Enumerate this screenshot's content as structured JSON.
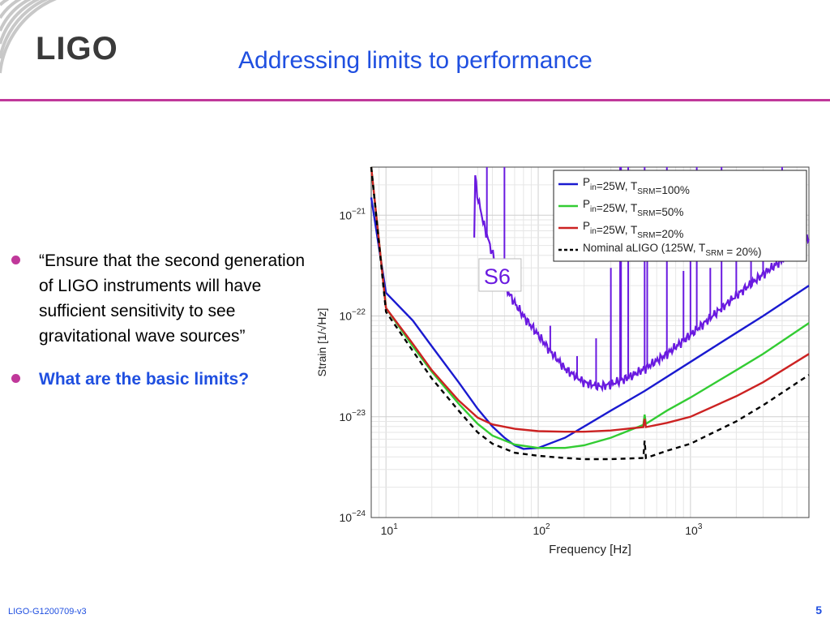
{
  "header": {
    "logo_text": "LIGO",
    "title": "Addressing limits to performance"
  },
  "bullets": [
    {
      "text": "“Ensure that the second generation of LIGO instruments will have sufficient sensitivity to see gravitational wave sources”",
      "style": "normal"
    },
    {
      "text": "What are the basic limits?",
      "style": "blue-bold"
    }
  ],
  "footer": {
    "doc_id": "LIGO-G1200709-v3",
    "page_number": "5"
  },
  "colors": {
    "title": "#1f4fe0",
    "rule": "#c0389a",
    "s6": "#6a1ae0",
    "blue": "#1a1ad0",
    "green": "#33cc33",
    "red": "#cc2222",
    "nominal": "#000000"
  },
  "chart_data": {
    "type": "line",
    "xscale": "log",
    "yscale": "log",
    "xlim": [
      8,
      6000
    ],
    "ylim": [
      1e-24,
      3e-21
    ],
    "xlabel": "Frequency [Hz]",
    "ylabel": "Strain [1/√Hz]",
    "xticks": [
      {
        "value": 10,
        "base": "10",
        "exp": "1"
      },
      {
        "value": 100,
        "base": "10",
        "exp": "2"
      },
      {
        "value": 1000,
        "base": "10",
        "exp": "3"
      }
    ],
    "yticks": [
      {
        "value": 1e-21,
        "base": "10",
        "exp": "−21"
      },
      {
        "value": 1e-22,
        "base": "10",
        "exp": "−22"
      },
      {
        "value": 1e-23,
        "base": "10",
        "exp": "−23"
      },
      {
        "value": 1e-24,
        "base": "10",
        "exp": "−24"
      }
    ],
    "grid": true,
    "legend_position": "top-right",
    "annotation": {
      "text": "S6",
      "x": 45,
      "y": 2.2e-22
    },
    "series": [
      {
        "legend": {
          "p": "P",
          "p_sub": "in",
          "mid": "=25W, T",
          "t_sub": "SRM",
          "end": "=100%"
        },
        "color": "#1a1ad0",
        "dash": "",
        "x": [
          8,
          10,
          15,
          20,
          30,
          40,
          50,
          60,
          70,
          80,
          100,
          150,
          200,
          300,
          500,
          1000,
          2000,
          3000,
          6000
        ],
        "y": [
          1.5e-21,
          1.7e-22,
          9e-23,
          5e-23,
          2.2e-23,
          1.2e-23,
          8e-24,
          6.2e-24,
          5.2e-24,
          4.8e-24,
          4.9e-24,
          6.2e-24,
          8e-24,
          1.15e-23,
          1.8e-23,
          3.5e-23,
          6.8e-23,
          1e-22,
          2e-22
        ]
      },
      {
        "legend": {
          "p": "P",
          "p_sub": "in",
          "mid": "=25W, T",
          "t_sub": "SRM",
          "end": "=50%"
        },
        "color": "#33cc33",
        "dash": "",
        "x": [
          8,
          10,
          15,
          20,
          30,
          40,
          50,
          70,
          100,
          150,
          200,
          300,
          490,
          500,
          510,
          700,
          1000,
          2000,
          3000,
          6000
        ],
        "y": [
          3e-21,
          1.2e-22,
          5e-23,
          2.8e-23,
          1.35e-23,
          8.5e-24,
          6.5e-24,
          5.3e-24,
          4.9e-24,
          4.9e-24,
          5.2e-24,
          6.2e-24,
          8.3e-24,
          1.05e-23,
          8.5e-24,
          1.15e-23,
          1.55e-23,
          2.9e-23,
          4.2e-23,
          8.5e-23
        ]
      },
      {
        "legend": {
          "p": "P",
          "p_sub": "in",
          "mid": "=25W, T",
          "t_sub": "SRM",
          "end": "=20%"
        },
        "color": "#cc2222",
        "dash": "",
        "x": [
          8,
          10,
          15,
          20,
          30,
          40,
          50,
          70,
          100,
          150,
          200,
          300,
          490,
          500,
          510,
          700,
          1000,
          2000,
          3000,
          6000
        ],
        "y": [
          3e-21,
          1.2e-22,
          5.3e-23,
          2.9e-23,
          1.45e-23,
          9.8e-24,
          8.4e-24,
          7.6e-24,
          7.2e-24,
          7.1e-24,
          7.1e-24,
          7.3e-24,
          7.9e-24,
          9.5e-24,
          7.9e-24,
          8.7e-24,
          1e-23,
          1.6e-23,
          2.2e-23,
          4.2e-23
        ]
      },
      {
        "legend": {
          "p": "",
          "p_sub": "",
          "mid": "Nominal aLIGO (125W, T",
          "t_sub": "SRM",
          "end": " = 20%)"
        },
        "color": "#000000",
        "dash": "6,5",
        "x": [
          8,
          10,
          15,
          20,
          30,
          40,
          50,
          70,
          100,
          150,
          200,
          300,
          490,
          500,
          510,
          700,
          1000,
          2000,
          3000,
          6000
        ],
        "y": [
          3e-21,
          1.1e-22,
          4.5e-23,
          2.4e-23,
          1.15e-23,
          7e-24,
          5.4e-24,
          4.4e-24,
          4.1e-24,
          3.9e-24,
          3.8e-24,
          3.8e-24,
          3.9e-24,
          5.8e-24,
          3.9e-24,
          4.6e-24,
          5.4e-24,
          9e-24,
          1.3e-23,
          2.6e-23
        ]
      }
    ],
    "s6_curve": {
      "color": "#6a1ae0",
      "x": [
        38,
        40,
        45,
        50,
        60,
        70,
        80,
        100,
        120,
        150,
        200,
        250,
        300,
        400,
        500,
        700,
        1000,
        1500,
        2000,
        3000,
        4000,
        5000,
        6000
      ],
      "y": [
        3e-21,
        1.5e-21,
        7e-22,
        4.2e-22,
        2e-22,
        1.35e-22,
        1e-22,
        6.5e-23,
        4.5e-23,
        3e-23,
        2.2e-23,
        2e-23,
        2.1e-23,
        2.5e-23,
        3e-23,
        4.2e-23,
        6.5e-23,
        1.1e-22,
        1.6e-22,
        2.6e-22,
        3.6e-22,
        4.8e-22,
        6e-22
      ],
      "spikes": [
        [
          46,
          3e-21
        ],
        [
          60,
          3e-21
        ],
        [
          120,
          8e-23
        ],
        [
          180,
          4e-23
        ],
        [
          240,
          6e-23
        ],
        [
          300,
          3e-22
        ],
        [
          345,
          3e-21
        ],
        [
          350,
          3e-21
        ],
        [
          390,
          3e-21
        ],
        [
          500,
          3e-21
        ],
        [
          520,
          6e-22
        ],
        [
          700,
          3e-21
        ],
        [
          900,
          2.8e-22
        ],
        [
          1000,
          5e-22
        ],
        [
          1100,
          3e-21
        ],
        [
          1350,
          3e-22
        ],
        [
          1600,
          3e-21
        ],
        [
          2000,
          6e-22
        ],
        [
          2500,
          4e-22
        ],
        [
          3000,
          1e-21
        ],
        [
          4000,
          3e-21
        ],
        [
          5000,
          1e-21
        ]
      ]
    }
  }
}
